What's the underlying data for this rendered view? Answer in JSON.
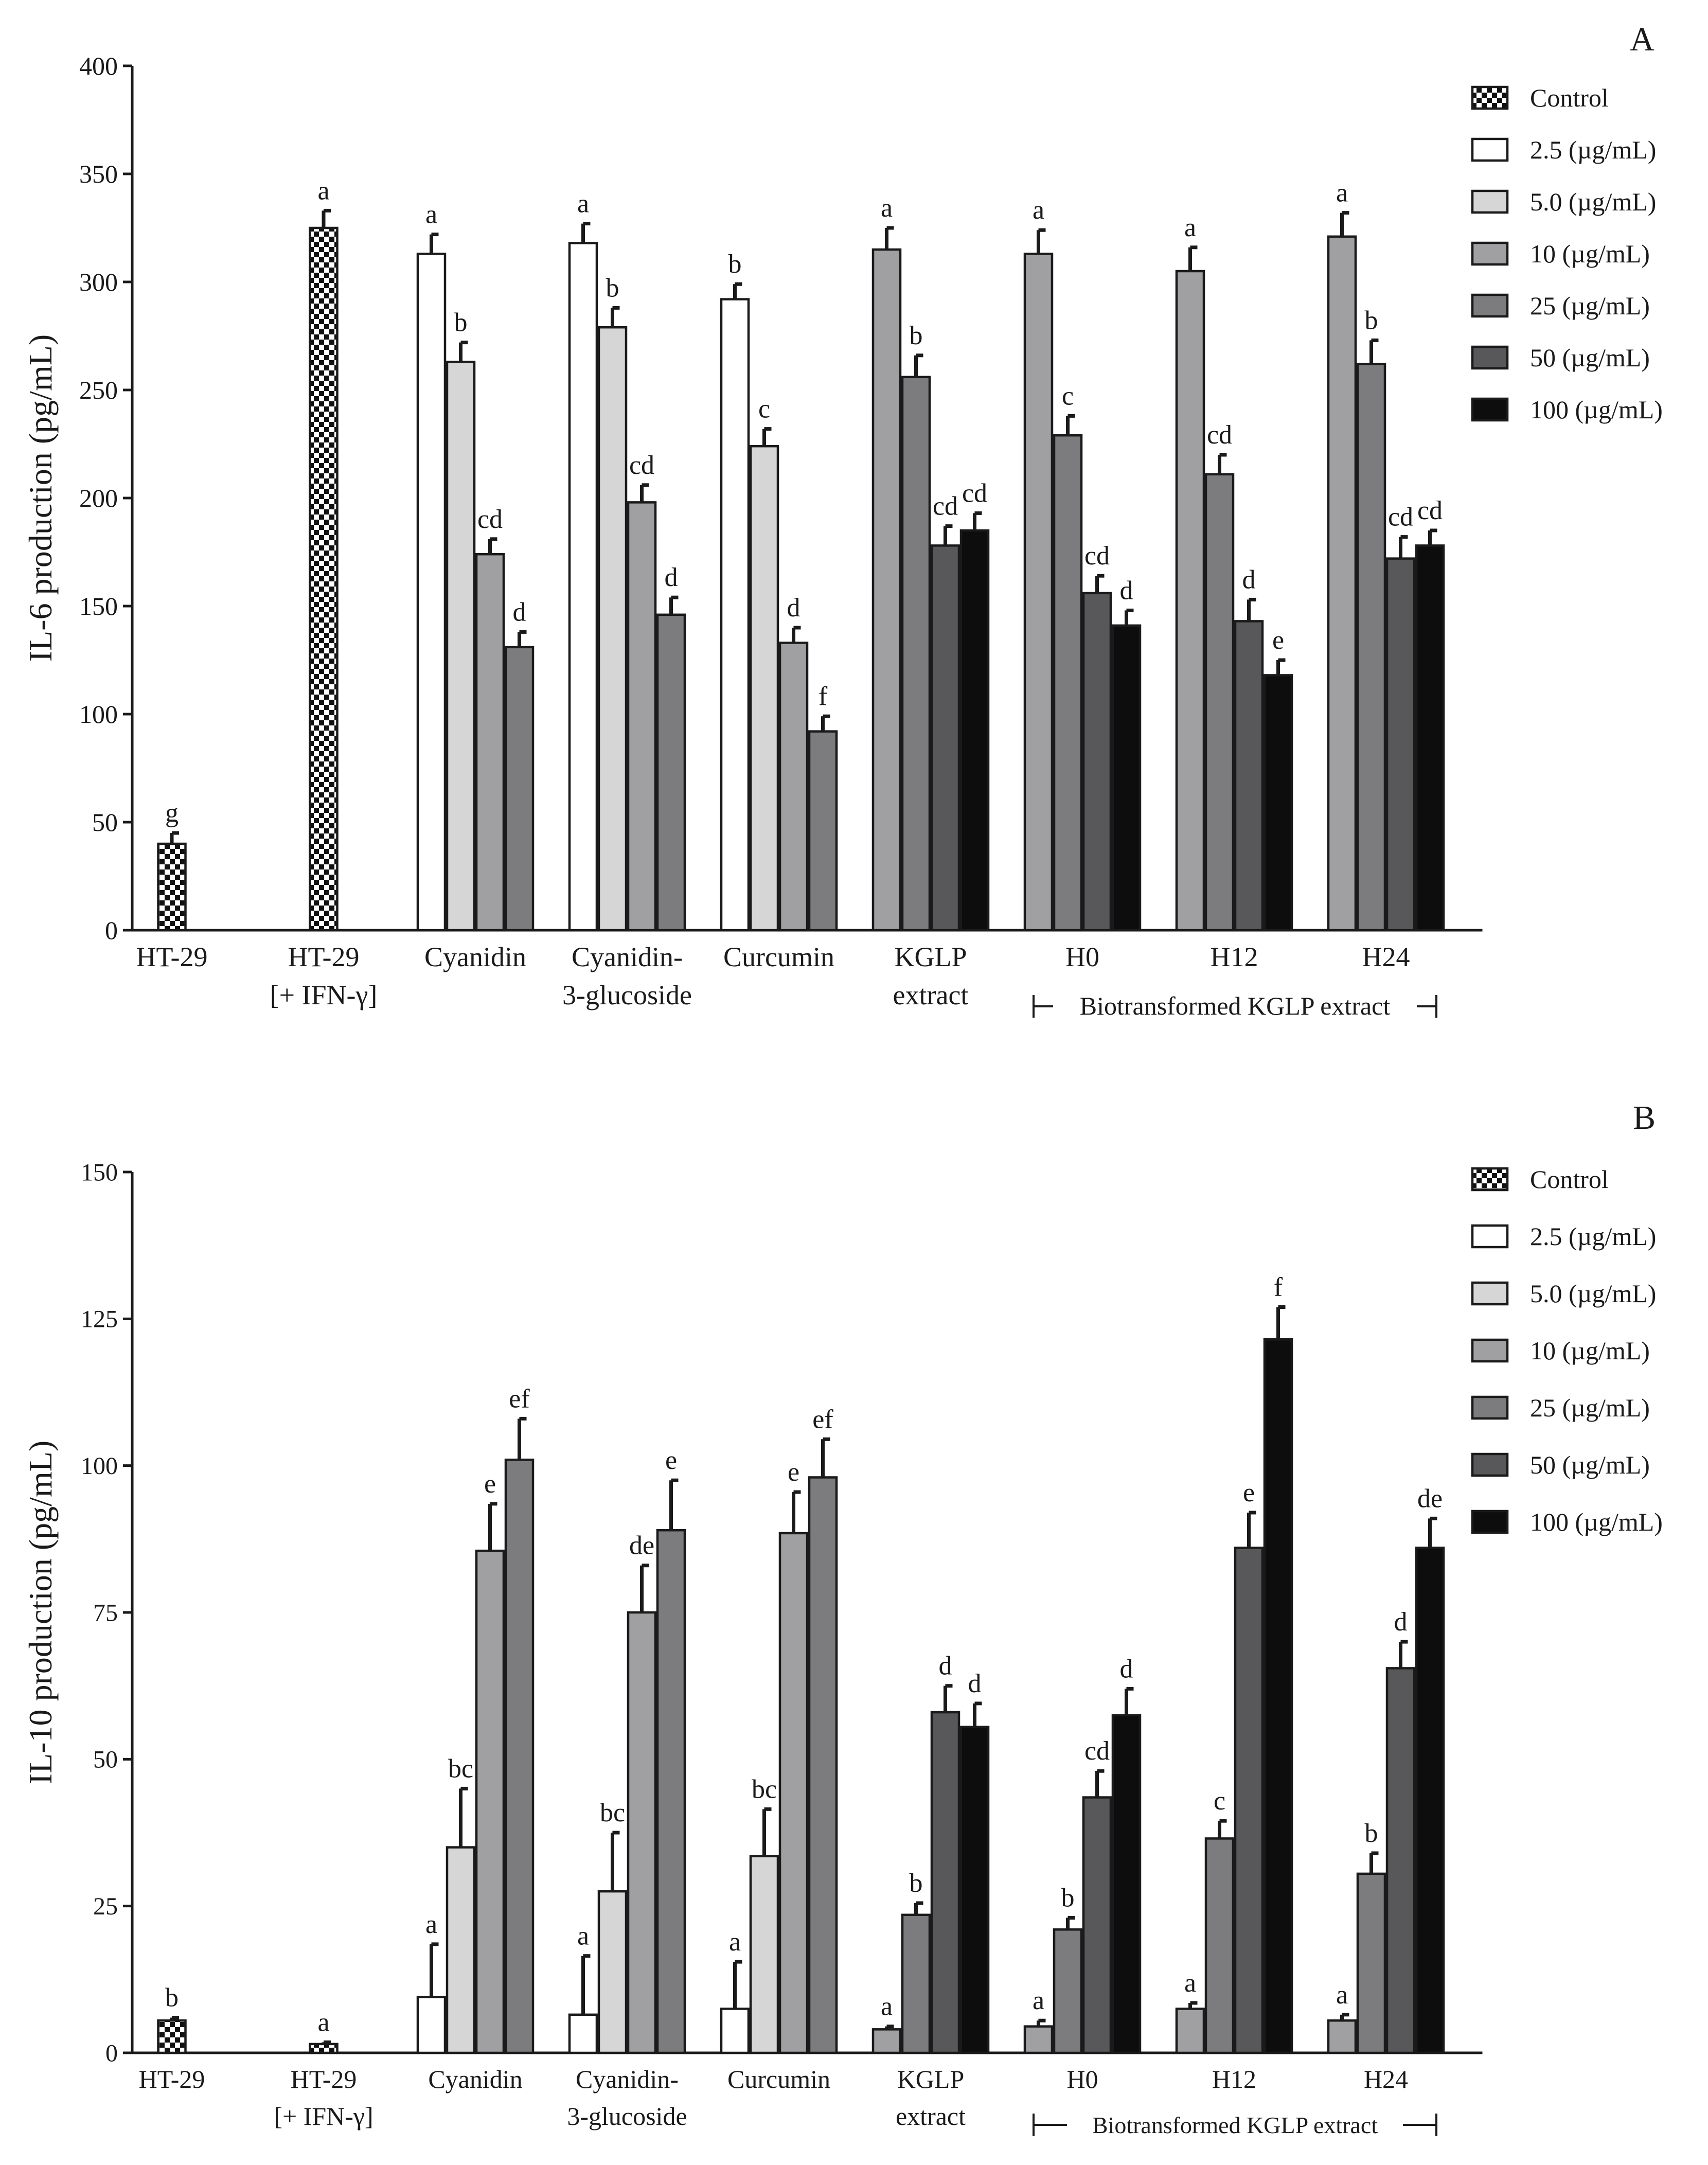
{
  "colors": {
    "2.5": "#ffffff",
    "5.0": "#d6d6d6",
    "10": "#a0a0a2",
    "25": "#7c7c7e",
    "50": "#58585a",
    "100": "#0d0d0d",
    "control_pattern": "checkerboard"
  },
  "legend_labels": {
    "Control": "Control",
    "2.5": "2.5 (µg/mL)",
    "5.0": "5.0 (µg/mL)",
    "10": "10 (µg/mL)",
    "25": "25 (µg/mL)",
    "50": "50 (µg/mL)",
    "100": "100 (µg/mL)"
  },
  "legend_order": [
    "Control",
    "2.5",
    "5.0",
    "10",
    "25",
    "50",
    "100"
  ],
  "chart_data": [
    {
      "type": "bar",
      "panel_label": "A",
      "ylabel": "IL-6 production (pg/mL)",
      "ylim": [
        0,
        400
      ],
      "yticks": [
        0,
        50,
        100,
        150,
        200,
        250,
        300,
        350,
        400
      ],
      "group_bracket_label": "Biotransformed KGLP extract",
      "group_bracket_groups": [
        "H0",
        "H24"
      ],
      "groups": [
        {
          "label": [
            "HT-29"
          ],
          "bars": [
            {
              "dose": "Control",
              "value": 40,
              "err": 5,
              "sig": "g"
            }
          ]
        },
        {
          "label": [
            "HT-29",
            "[+ IFN-γ]"
          ],
          "bars": [
            {
              "dose": "Control",
              "value": 325,
              "err": 8,
              "sig": "a"
            }
          ]
        },
        {
          "label": [
            "Cyanidin"
          ],
          "bars": [
            {
              "dose": "2.5",
              "value": 313,
              "err": 9,
              "sig": "a"
            },
            {
              "dose": "5.0",
              "value": 263,
              "err": 9,
              "sig": "b"
            },
            {
              "dose": "10",
              "value": 174,
              "err": 7,
              "sig": "cd"
            },
            {
              "dose": "25",
              "value": 131,
              "err": 7,
              "sig": "d"
            }
          ]
        },
        {
          "label": [
            "Cyanidin-",
            "3-glucoside"
          ],
          "bars": [
            {
              "dose": "2.5",
              "value": 318,
              "err": 9,
              "sig": "a"
            },
            {
              "dose": "5.0",
              "value": 279,
              "err": 9,
              "sig": "b"
            },
            {
              "dose": "10",
              "value": 198,
              "err": 8,
              "sig": "cd"
            },
            {
              "dose": "25",
              "value": 146,
              "err": 8,
              "sig": "d"
            }
          ]
        },
        {
          "label": [
            "Curcumin"
          ],
          "bars": [
            {
              "dose": "2.5",
              "value": 292,
              "err": 7,
              "sig": "b"
            },
            {
              "dose": "5.0",
              "value": 224,
              "err": 8,
              "sig": "c"
            },
            {
              "dose": "10",
              "value": 133,
              "err": 7,
              "sig": "d"
            },
            {
              "dose": "25",
              "value": 92,
              "err": 7,
              "sig": "f"
            }
          ]
        },
        {
          "label": [
            "KGLP",
            "extract"
          ],
          "bars": [
            {
              "dose": "10",
              "value": 315,
              "err": 10,
              "sig": "a"
            },
            {
              "dose": "25",
              "value": 256,
              "err": 10,
              "sig": "b"
            },
            {
              "dose": "50",
              "value": 178,
              "err": 9,
              "sig": "cd"
            },
            {
              "dose": "100",
              "value": 185,
              "err": 8,
              "sig": "cd"
            }
          ]
        },
        {
          "label": [
            "H0"
          ],
          "bars": [
            {
              "dose": "10",
              "value": 313,
              "err": 11,
              "sig": "a"
            },
            {
              "dose": "25",
              "value": 229,
              "err": 9,
              "sig": "c"
            },
            {
              "dose": "50",
              "value": 156,
              "err": 8,
              "sig": "cd"
            },
            {
              "dose": "100",
              "value": 141,
              "err": 7,
              "sig": "d"
            }
          ]
        },
        {
          "label": [
            "H12"
          ],
          "bars": [
            {
              "dose": "10",
              "value": 305,
              "err": 11,
              "sig": "a"
            },
            {
              "dose": "25",
              "value": 211,
              "err": 9,
              "sig": "cd"
            },
            {
              "dose": "50",
              "value": 143,
              "err": 10,
              "sig": "d"
            },
            {
              "dose": "100",
              "value": 118,
              "err": 7,
              "sig": "e"
            }
          ]
        },
        {
          "label": [
            "H24"
          ],
          "bars": [
            {
              "dose": "10",
              "value": 321,
              "err": 11,
              "sig": "a"
            },
            {
              "dose": "25",
              "value": 262,
              "err": 11,
              "sig": "b"
            },
            {
              "dose": "50",
              "value": 172,
              "err": 10,
              "sig": "cd"
            },
            {
              "dose": "100",
              "value": 178,
              "err": 7,
              "sig": "cd"
            }
          ]
        }
      ]
    },
    {
      "type": "bar",
      "panel_label": "B",
      "ylabel": "IL-10 production (pg/mL)",
      "ylim": [
        0,
        150
      ],
      "yticks": [
        0,
        25,
        50,
        75,
        100,
        125,
        150
      ],
      "group_bracket_label": "Biotransformed KGLP extract",
      "group_bracket_groups": [
        "H0",
        "H24"
      ],
      "groups": [
        {
          "label": [
            "HT-29"
          ],
          "bars": [
            {
              "dose": "Control",
              "value": 5.5,
              "err": 0.5,
              "sig": "b"
            }
          ]
        },
        {
          "label": [
            "HT-29",
            "[+ IFN-γ]"
          ],
          "bars": [
            {
              "dose": "Control",
              "value": 1.5,
              "err": 0.3,
              "sig": "a"
            }
          ]
        },
        {
          "label": [
            "Cyanidin"
          ],
          "bars": [
            {
              "dose": "2.5",
              "value": 9.5,
              "err": 9,
              "sig": "a"
            },
            {
              "dose": "5.0",
              "value": 35,
              "err": 10,
              "sig": "bc"
            },
            {
              "dose": "10",
              "value": 85.5,
              "err": 8,
              "sig": "e"
            },
            {
              "dose": "25",
              "value": 101,
              "err": 7,
              "sig": "ef"
            }
          ]
        },
        {
          "label": [
            "Cyanidin-",
            "3-glucoside"
          ],
          "bars": [
            {
              "dose": "2.5",
              "value": 6.5,
              "err": 10,
              "sig": "a"
            },
            {
              "dose": "5.0",
              "value": 27.5,
              "err": 10,
              "sig": "bc"
            },
            {
              "dose": "10",
              "value": 75,
              "err": 8,
              "sig": "de"
            },
            {
              "dose": "25",
              "value": 89,
              "err": 8.5,
              "sig": "e"
            }
          ]
        },
        {
          "label": [
            "Curcumin"
          ],
          "bars": [
            {
              "dose": "2.5",
              "value": 7.5,
              "err": 8,
              "sig": "a"
            },
            {
              "dose": "5.0",
              "value": 33.5,
              "err": 8,
              "sig": "bc"
            },
            {
              "dose": "10",
              "value": 88.5,
              "err": 7,
              "sig": "e"
            },
            {
              "dose": "25",
              "value": 98,
              "err": 6.5,
              "sig": "ef"
            }
          ]
        },
        {
          "label": [
            "KGLP",
            "extract"
          ],
          "bars": [
            {
              "dose": "10",
              "value": 4,
              "err": 0.5,
              "sig": "a"
            },
            {
              "dose": "25",
              "value": 23.5,
              "err": 2,
              "sig": "b"
            },
            {
              "dose": "50",
              "value": 58,
              "err": 4.5,
              "sig": "d"
            },
            {
              "dose": "100",
              "value": 55.5,
              "err": 4,
              "sig": "d"
            }
          ]
        },
        {
          "label": [
            "H0"
          ],
          "bars": [
            {
              "dose": "10",
              "value": 4.5,
              "err": 1,
              "sig": "a"
            },
            {
              "dose": "25",
              "value": 21,
              "err": 2,
              "sig": "b"
            },
            {
              "dose": "50",
              "value": 43.5,
              "err": 4.5,
              "sig": "cd"
            },
            {
              "dose": "100",
              "value": 57.5,
              "err": 4.5,
              "sig": "d"
            }
          ]
        },
        {
          "label": [
            "H12"
          ],
          "bars": [
            {
              "dose": "10",
              "value": 7.5,
              "err": 1,
              "sig": "a"
            },
            {
              "dose": "25",
              "value": 36.5,
              "err": 3,
              "sig": "c"
            },
            {
              "dose": "50",
              "value": 86,
              "err": 6,
              "sig": "e"
            },
            {
              "dose": "100",
              "value": 121.5,
              "err": 5.5,
              "sig": "f"
            }
          ]
        },
        {
          "label": [
            "H24"
          ],
          "bars": [
            {
              "dose": "10",
              "value": 5.5,
              "err": 1,
              "sig": "a"
            },
            {
              "dose": "25",
              "value": 30.5,
              "err": 3.5,
              "sig": "b"
            },
            {
              "dose": "50",
              "value": 65.5,
              "err": 4.5,
              "sig": "d"
            },
            {
              "dose": "100",
              "value": 86,
              "err": 5,
              "sig": "de"
            }
          ]
        }
      ]
    }
  ]
}
